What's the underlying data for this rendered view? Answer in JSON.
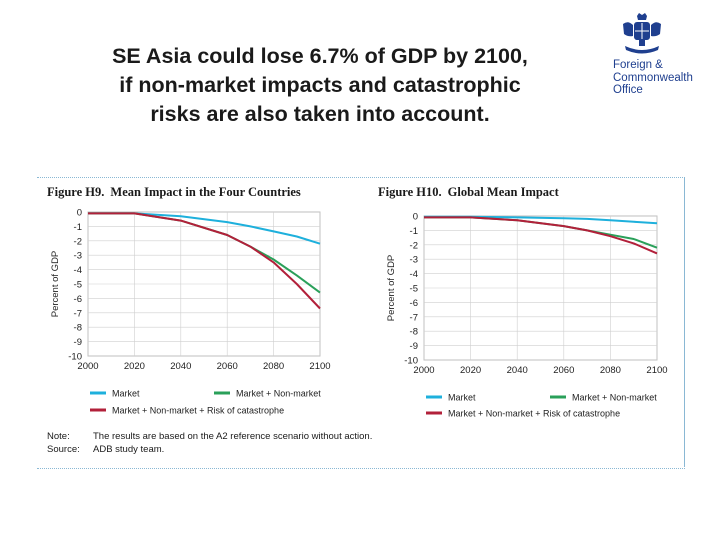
{
  "slide": {
    "title_lines": [
      "SE Asia could lose 6.7% of GDP by 2100,",
      "if non-market impacts and catastrophic",
      "risks are also taken into account."
    ],
    "org_lines": [
      "Foreign &",
      "Commonwealth",
      "Office"
    ]
  },
  "figures": [
    {
      "num": "Figure H9.",
      "title": "Mean Impact in the Four Countries"
    },
    {
      "num": "Figure H10.",
      "title": "Global Mean Impact"
    }
  ],
  "note": {
    "note_label": "Note:",
    "note_text": "The results are based on the A2 reference scenario without action.",
    "source_label": "Source:",
    "source_text": "ADB study team."
  },
  "colors": {
    "market": "#1eb0dc",
    "nonmarket": "#2aa05a",
    "catastrophe": "#b2203a",
    "grid": "#cfcfcf"
  },
  "chart_data": [
    {
      "type": "line",
      "title": "Mean Impact in the Four Countries",
      "xlabel": "",
      "ylabel": "Percent of GDP",
      "x": [
        2000,
        2020,
        2040,
        2060,
        2070,
        2080,
        2090,
        2100
      ],
      "xticks": [
        "2000",
        "2020",
        "2040",
        "2060",
        "2080",
        "2100"
      ],
      "yticks": [
        "0",
        "-1",
        "-2",
        "-3",
        "-4",
        "-5",
        "-6",
        "-7",
        "-8",
        "-9",
        "-10"
      ],
      "xlim": [
        2000,
        2100
      ],
      "ylim": [
        -10,
        0
      ],
      "grid": true,
      "series": [
        {
          "name": "Market",
          "values": [
            -0.1,
            -0.1,
            -0.3,
            -0.7,
            -1.0,
            -1.35,
            -1.7,
            -2.2
          ]
        },
        {
          "name": "Market + Non-market",
          "values": [
            -0.1,
            -0.1,
            -0.6,
            -1.6,
            -2.4,
            -3.3,
            -4.4,
            -5.6
          ]
        },
        {
          "name": "Market + Non-market + Risk of catastrophe",
          "values": [
            -0.1,
            -0.1,
            -0.6,
            -1.6,
            -2.4,
            -3.5,
            -5.0,
            -6.7
          ]
        }
      ],
      "legend": {
        "placement": "bottom"
      }
    },
    {
      "type": "line",
      "title": "Global Mean Impact",
      "xlabel": "",
      "ylabel": "Percent of GDP",
      "x": [
        2000,
        2020,
        2040,
        2060,
        2070,
        2080,
        2090,
        2100
      ],
      "xticks": [
        "2000",
        "2020",
        "2040",
        "2060",
        "2080",
        "2100"
      ],
      "yticks": [
        "0",
        "-1",
        "-2",
        "-3",
        "-4",
        "-5",
        "-6",
        "-7",
        "-8",
        "-9",
        "-10"
      ],
      "xlim": [
        2000,
        2100
      ],
      "ylim": [
        -10,
        0
      ],
      "grid": true,
      "series": [
        {
          "name": "Market",
          "values": [
            -0.05,
            -0.05,
            -0.1,
            -0.15,
            -0.2,
            -0.3,
            -0.4,
            -0.5
          ]
        },
        {
          "name": "Market + Non-market",
          "values": [
            -0.1,
            -0.1,
            -0.3,
            -0.7,
            -1.0,
            -1.3,
            -1.6,
            -2.2
          ]
        },
        {
          "name": "Market + Non-market + Risk of catastrophe",
          "values": [
            -0.1,
            -0.1,
            -0.3,
            -0.7,
            -1.0,
            -1.4,
            -1.9,
            -2.6
          ]
        }
      ],
      "legend": {
        "placement": "bottom"
      }
    }
  ]
}
